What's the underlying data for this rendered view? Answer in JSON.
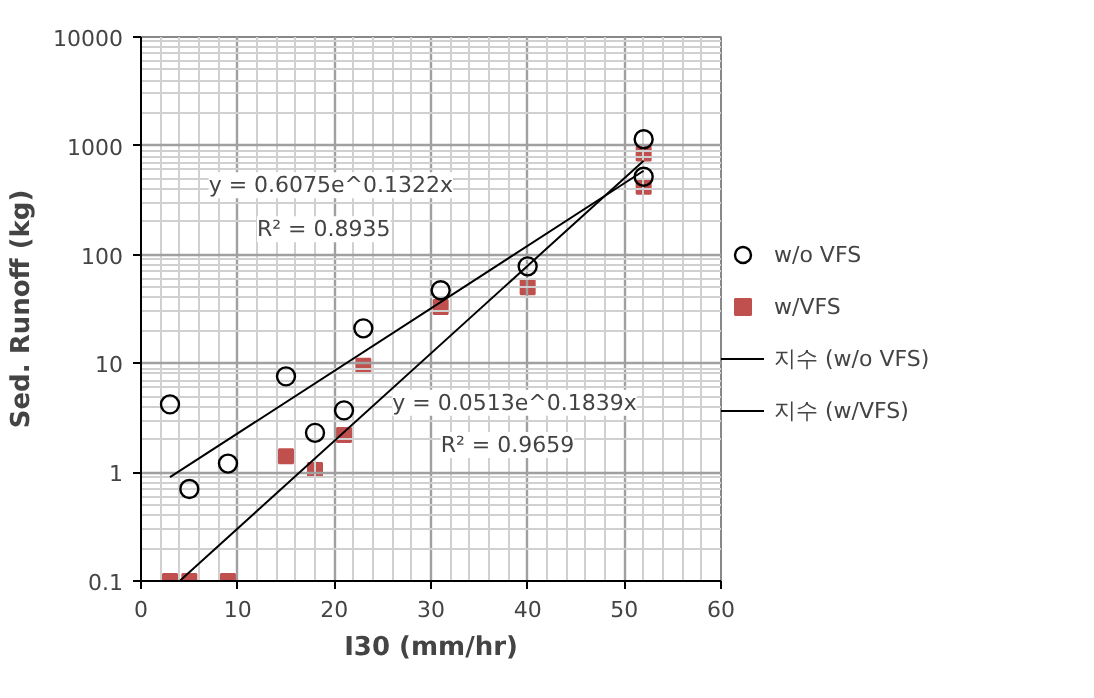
{
  "chart_data": {
    "type": "scatter",
    "xlabel": "I30 (mm/hr)",
    "ylabel": "Sed. Runoff (kg)",
    "log": "y",
    "xlim": [
      0,
      60
    ],
    "xticks": [
      0,
      10,
      20,
      30,
      40,
      50,
      60
    ],
    "ylim": [
      0.1,
      10000
    ],
    "yticks": [
      0.1,
      1,
      10,
      100,
      1000,
      10000
    ],
    "grid": true,
    "legend": "right",
    "annotations": [
      "y = 0.6075e^0.1322x",
      "R² = 0.8935",
      "y = 0.0513e^0.1839x",
      "R² = 0.9659"
    ],
    "series": [
      {
        "name": "w/o VFS",
        "marker": "circle",
        "color": "#000000",
        "x": [
          3,
          5,
          9,
          15,
          18,
          21,
          23,
          31,
          40,
          52,
          52
        ],
        "values": [
          4.2,
          0.7,
          1.2,
          7.6,
          2.3,
          3.7,
          21,
          47,
          78,
          1150,
          520
        ]
      },
      {
        "name": "w/VFS",
        "marker": "square",
        "color": "#c0504d",
        "x": [
          3,
          5,
          9,
          15,
          18,
          21,
          23,
          31,
          40,
          52,
          52
        ],
        "values": [
          0.1,
          0.1,
          0.1,
          1.4,
          1.05,
          2.2,
          9.5,
          33,
          50,
          850,
          420
        ]
      },
      {
        "name": "지수 (w/o VFS)",
        "type": "line",
        "color": "#000000",
        "x": [
          3,
          52
        ],
        "values": [
          0.9,
          590
        ]
      },
      {
        "name": "지수 (w/VFS)",
        "type": "line",
        "color": "#000000",
        "x": [
          4,
          52
        ],
        "values": [
          0.1,
          730
        ]
      }
    ]
  }
}
